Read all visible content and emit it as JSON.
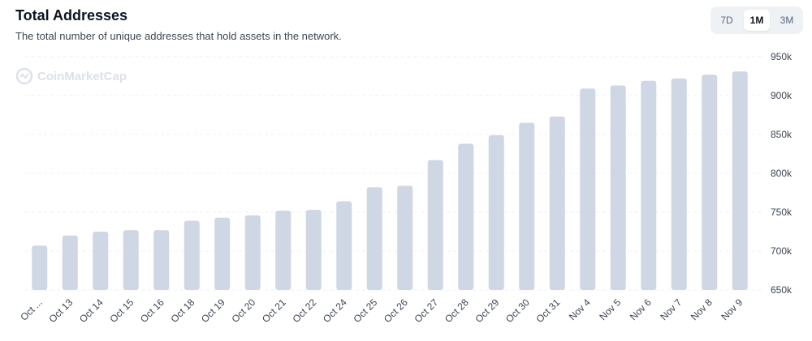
{
  "header": {
    "title": "Total Addresses",
    "subtitle": "The total number of unique addresses that hold assets in the network."
  },
  "range_selector": {
    "options": [
      "7D",
      "1M",
      "3M"
    ],
    "selected": "1M"
  },
  "watermark": {
    "text": "CoinMarketCap",
    "icon": "coinmarketcap-logo-icon"
  },
  "colors": {
    "bar": "#cfd6e4",
    "grid": "#eef0f3",
    "text": "#3d4554"
  },
  "chart_data": {
    "type": "bar",
    "title": "Total Addresses",
    "categories": [
      "Oct ...",
      "Oct 13",
      "Oct 14",
      "Oct 15",
      "Oct 16",
      "Oct 18",
      "Oct 19",
      "Oct 20",
      "Oct 21",
      "Oct 22",
      "Oct 24",
      "Oct 25",
      "Oct 26",
      "Oct 27",
      "Oct 28",
      "Oct 29",
      "Oct 30",
      "Oct 31",
      "Nov 4",
      "Nov 5",
      "Nov 6",
      "Nov 7",
      "Nov 8",
      "Nov 9"
    ],
    "values": [
      707000,
      720000,
      725000,
      727000,
      727000,
      739000,
      743000,
      746000,
      752000,
      753000,
      764000,
      782000,
      784000,
      817000,
      838000,
      849000,
      865000,
      873000,
      909000,
      913000,
      919000,
      922000,
      927000,
      931000
    ],
    "ylim": [
      650000,
      950000
    ],
    "yticks": [
      650000,
      700000,
      750000,
      800000,
      850000,
      900000,
      950000
    ],
    "ytick_labels": [
      "650k",
      "700k",
      "750k",
      "800k",
      "850k",
      "900k",
      "950k"
    ],
    "yaxis_position": "right",
    "grid": true,
    "legend": "none"
  }
}
